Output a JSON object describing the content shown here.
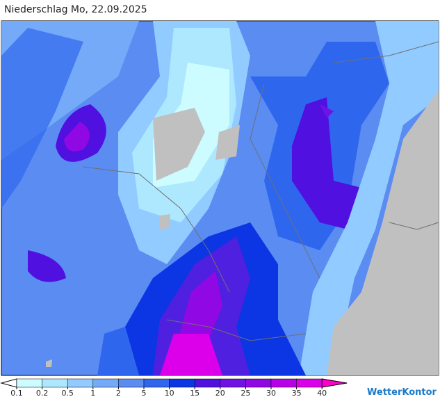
{
  "header": {
    "title": "Niederschlag Mo, 22.09.2025"
  },
  "legend": {
    "ticks": [
      0.1,
      0.2,
      0.5,
      1,
      2,
      5,
      10,
      15,
      20,
      25,
      30,
      35,
      40
    ],
    "under_color": "#ffffff",
    "colors": [
      "#ccfcff",
      "#aee8ff",
      "#92cbff",
      "#75aaf8",
      "#5a8cf2",
      "#2f66ee",
      "#0c35e4",
      "#4f10e0",
      "#7012e4",
      "#9008e4",
      "#b800e8",
      "#dc00ea"
    ],
    "over_color": "#ff00cc"
  },
  "brand": "WetterKontor"
}
